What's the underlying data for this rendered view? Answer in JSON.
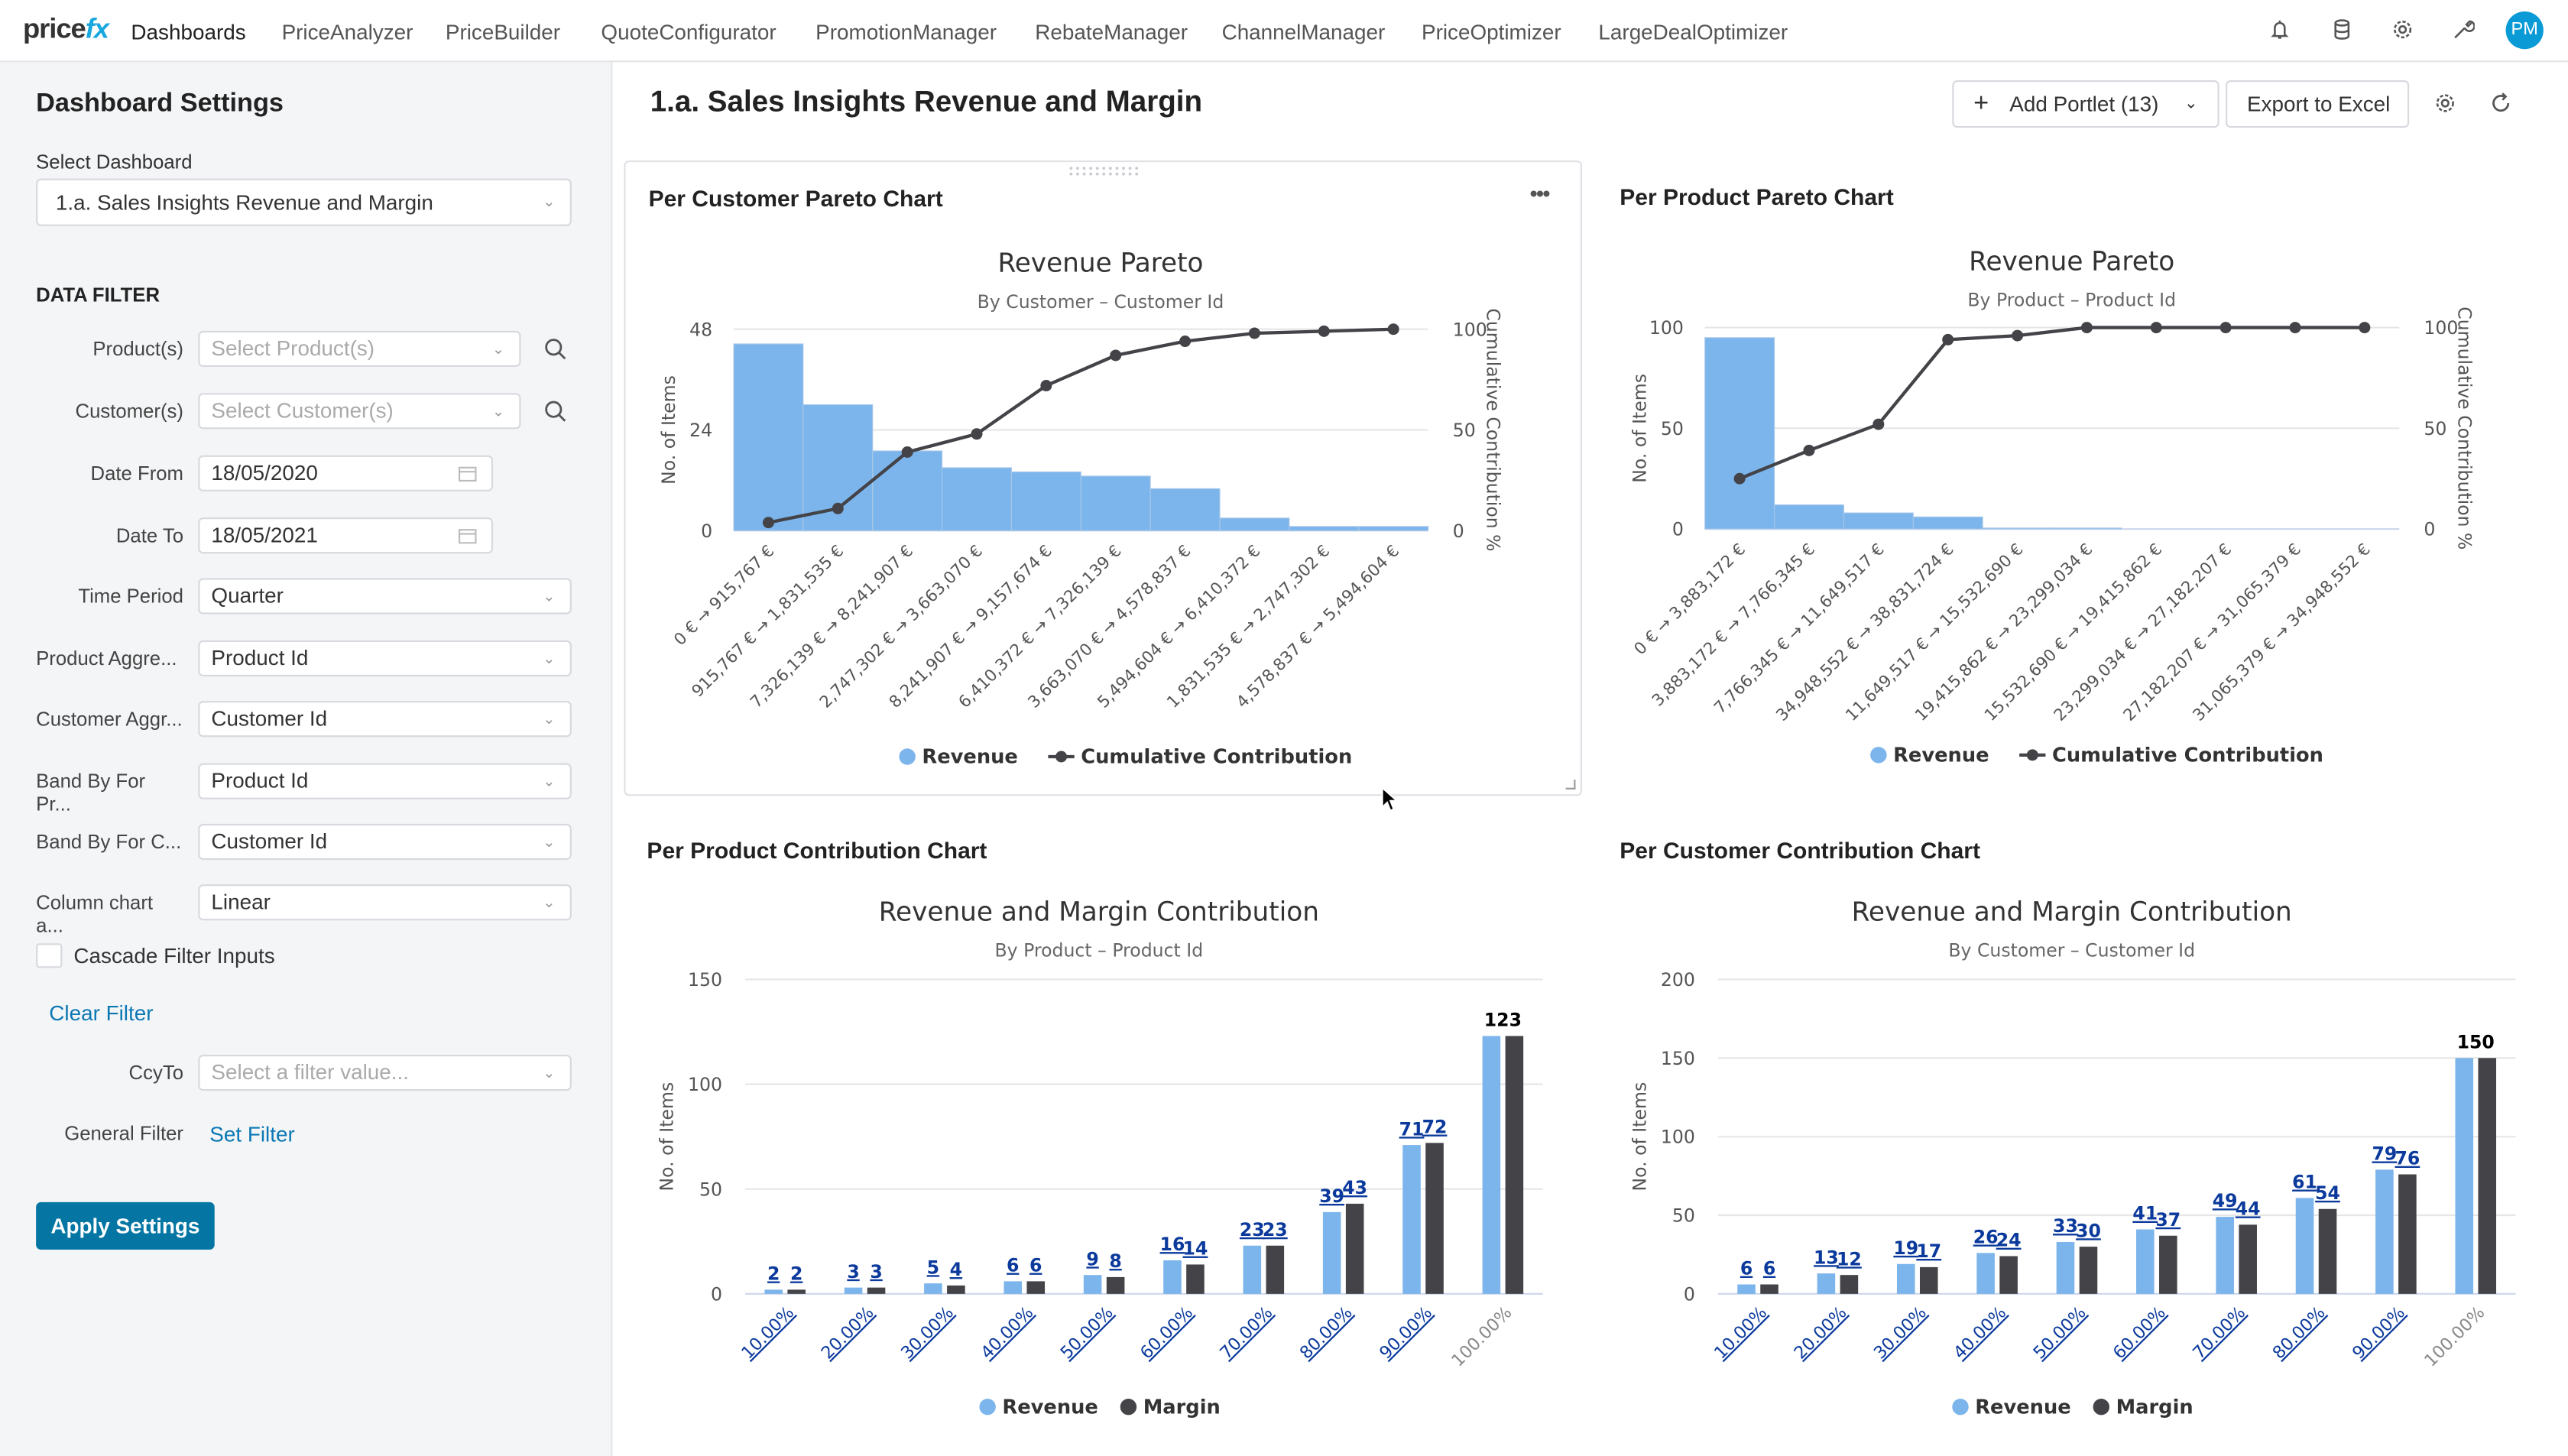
{
  "nav": {
    "logo": "pricefx",
    "items": [
      "Dashboards",
      "PriceAnalyzer",
      "PriceBuilder",
      "QuoteConfigurator",
      "PromotionManager",
      "RebateManager",
      "ChannelManager",
      "PriceOptimizer",
      "LargeDealOptimizer"
    ],
    "active": "Dashboards",
    "icons": [
      "bell-icon",
      "database-icon",
      "gear-icon",
      "wrench-icon"
    ],
    "avatar": "PM"
  },
  "sidebar": {
    "title": "Dashboard Settings",
    "select_label": "Select Dashboard",
    "select_value": "1.a. Sales Insights Revenue and Margin",
    "section": "DATA FILTER",
    "filters": [
      {
        "label": "Product(s)",
        "placeholder": "Select Product(s)"
      },
      {
        "label": "Customer(s)",
        "placeholder": "Select Customer(s)"
      },
      {
        "label": "Date From",
        "value": "18/05/2020"
      },
      {
        "label": "Date To",
        "value": "18/05/2021"
      },
      {
        "label": "Time Period",
        "value": "Quarter"
      },
      {
        "label": "Product Aggre...",
        "value": "Product Id"
      },
      {
        "label": "Customer Aggr...",
        "value": "Customer Id"
      },
      {
        "label": "Band By For Pr...",
        "value": "Product Id"
      },
      {
        "label": "Band By For C...",
        "value": "Customer Id"
      },
      {
        "label": "Column chart a...",
        "value": "Linear"
      }
    ],
    "cascade_label": "Cascade Filter Inputs",
    "cascade_checked": false,
    "clear_filter": "Clear Filter",
    "ccy_label": "CcyTo",
    "ccy_placeholder": "Select a filter value...",
    "general_label": "General Filter",
    "set_filter": "Set Filter",
    "apply": "Apply Settings"
  },
  "main": {
    "title": "1.a. Sales Insights Revenue and Margin",
    "add_portlet": "Add Portlet (13)",
    "export": "Export to Excel",
    "portlets": [
      "Per Customer Pareto Chart",
      "Per Product Pareto Chart",
      "Per Product Contribution Chart",
      "Per Customer Contribution Chart"
    ]
  },
  "colors": {
    "revenue": "#7cb5ec",
    "cumulative": "#434348",
    "margin": "#434348",
    "link_label": "#0b3a9c",
    "accent": "#0576a3"
  },
  "chart_data": [
    {
      "type": "bar+line",
      "title": "Revenue Pareto",
      "subtitle": "By Customer – Customer Id",
      "ylabel": "No. of Items",
      "y2label": "Cumulative Contribution %",
      "ylim": [
        0,
        48
      ],
      "yticks": [
        0,
        24,
        48
      ],
      "y2lim": [
        0,
        100
      ],
      "y2ticks": [
        0,
        50,
        100
      ],
      "categories": [
        "0 € → 915,767 €",
        "915,767 € → 1,831,535 €",
        "7,326,139 € → 8,241,907 €",
        "2,747,302 € → 3,663,070 €",
        "8,241,907 € → 9,157,674 €",
        "6,410,372 € → 7,326,139 €",
        "3,663,070 € → 4,578,837 €",
        "5,494,604 € → 6,410,372 €",
        "1,831,535 € → 2,747,302 €",
        "4,578,837 € → 5,494,604 €"
      ],
      "series": [
        {
          "name": "Revenue",
          "type": "column",
          "values": [
            44.5,
            30,
            19,
            15,
            14,
            13,
            10,
            3,
            1,
            1
          ]
        },
        {
          "name": "Cumulative Contribution",
          "type": "line",
          "values": [
            4,
            11,
            39,
            48,
            72,
            87,
            94,
            98,
            99,
            100
          ]
        }
      ],
      "legend": "bottom"
    },
    {
      "type": "bar+line",
      "title": "Revenue Pareto",
      "subtitle": "By Product – Product Id",
      "ylabel": "No. of Items",
      "y2label": "Cumulative Contribution %",
      "ylim": [
        0,
        100
      ],
      "yticks": [
        0,
        50,
        100
      ],
      "y2lim": [
        0,
        100
      ],
      "y2ticks": [
        0,
        50,
        100
      ],
      "categories": [
        "0 € → 3,883,172 €",
        "3,883,172 € → 7,766,345 €",
        "7,766,345 € → 11,649,517 €",
        "34,948,552 € → 38,831,724 €",
        "11,649,517 € → 15,532,690 €",
        "19,415,862 € → 23,299,034 €",
        "15,532,690 € → 19,415,862 €",
        "23,299,034 € → 27,182,207 €",
        "27,182,207 € → 31,065,379 €",
        "31,065,379 € → 34,948,552 €"
      ],
      "series": [
        {
          "name": "Revenue",
          "type": "column",
          "values": [
            95,
            12,
            8,
            6,
            0.5,
            0.5,
            0,
            0,
            0,
            0
          ]
        },
        {
          "name": "Cumulative Contribution",
          "type": "line",
          "values": [
            25,
            39,
            52,
            94,
            96,
            100,
            100,
            100,
            100,
            100
          ]
        }
      ],
      "legend": "bottom"
    },
    {
      "type": "bar",
      "title": "Revenue and Margin Contribution",
      "subtitle": "By Product – Product Id",
      "ylabel": "No. of Items",
      "ylim": [
        0,
        150
      ],
      "yticks": [
        0,
        50,
        100,
        150
      ],
      "categories": [
        "10.00%",
        "20.00%",
        "30.00%",
        "40.00%",
        "50.00%",
        "60.00%",
        "70.00%",
        "80.00%",
        "90.00%",
        "100.00%"
      ],
      "series": [
        {
          "name": "Revenue",
          "values": [
            2,
            3,
            5,
            6,
            9,
            16,
            23,
            39,
            71,
            123
          ]
        },
        {
          "name": "Margin",
          "values": [
            2,
            3,
            4,
            6,
            8,
            14,
            23,
            43,
            72,
            123
          ]
        }
      ],
      "legend": "bottom"
    },
    {
      "type": "bar",
      "title": "Revenue and Margin Contribution",
      "subtitle": "By Customer – Customer Id",
      "ylabel": "No. of Items",
      "ylim": [
        0,
        200
      ],
      "yticks": [
        0,
        50,
        100,
        150,
        200
      ],
      "categories": [
        "10.00%",
        "20.00%",
        "30.00%",
        "40.00%",
        "50.00%",
        "60.00%",
        "70.00%",
        "80.00%",
        "90.00%",
        "100.00%"
      ],
      "series": [
        {
          "name": "Revenue",
          "values": [
            6,
            13,
            19,
            26,
            33,
            41,
            49,
            61,
            79,
            150
          ]
        },
        {
          "name": "Margin",
          "values": [
            6,
            12,
            17,
            24,
            30,
            37,
            44,
            54,
            76,
            150
          ]
        }
      ],
      "legend": "bottom"
    }
  ]
}
